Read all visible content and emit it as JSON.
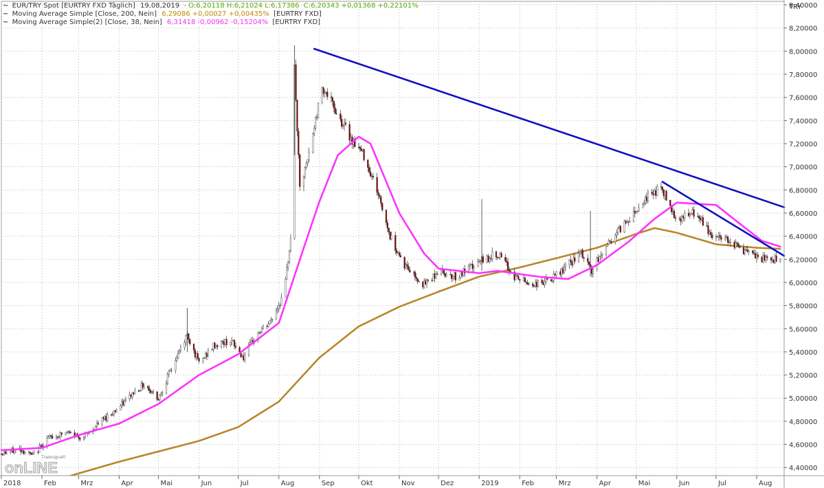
{
  "legend": [
    {
      "name": "EUR/TRY Spot [EURTRY FXD  Täglich]",
      "date": "19,08,2019",
      "ohlc_label": "- O:6,20118 H:6,21024 L:6,17386",
      "value": "C:6,20343 +0,01368 +0,22101%",
      "source": ""
    },
    {
      "name": "Moving Average Simple [Close, 200, Nein]",
      "date": "",
      "ohlc_label": "",
      "value": "6,29086 +0,00027 +0,00435%",
      "source": "[EURTRY FXD]"
    },
    {
      "name": "Moving Average Simple(2) [Close, 38, Nein]",
      "date": "",
      "ohlc_label": "",
      "value": "6,31418 -0,00962 -0,15204%",
      "source": "[EURTRY FXD]"
    }
  ],
  "colors": {
    "background": "#ffffff",
    "grid": "#b8b8b8",
    "candle": "#8a0000",
    "candle_up": "#ffffff",
    "sma200": "#b8862a",
    "sma38": "#ff33ff",
    "trendline": "#1010c0",
    "legend_text": "#333333",
    "legend_value_main": "#55aa00",
    "legend_value_sma200": "#c08a00",
    "legend_value_sma38": "#ee33ee"
  },
  "logo": {
    "sub": "Tradesignal®",
    "main": "onLINE"
  },
  "chart_data": {
    "type": "candlestick",
    "currency_label": "TRY",
    "y_range": [
      4.33,
      8.43
    ],
    "date_range": [
      "2018-01-01",
      "2019-08-22"
    ],
    "y_ticks": [
      {
        "value": 4.4,
        "label": "4,40000"
      },
      {
        "value": 4.6,
        "label": "4,60000"
      },
      {
        "value": 4.8,
        "label": "4,80000"
      },
      {
        "value": 5.0,
        "label": "5,00000"
      },
      {
        "value": 5.2,
        "label": "5,20000"
      },
      {
        "value": 5.4,
        "label": "5,40000"
      },
      {
        "value": 5.6,
        "label": "5,60000"
      },
      {
        "value": 5.8,
        "label": "5,80000"
      },
      {
        "value": 6.0,
        "label": "6,00000"
      },
      {
        "value": 6.2,
        "label": "6,20000"
      },
      {
        "value": 6.4,
        "label": "6,40000"
      },
      {
        "value": 6.6,
        "label": "6,60000"
      },
      {
        "value": 6.8,
        "label": "6,80000"
      },
      {
        "value": 7.0,
        "label": "7,00000"
      },
      {
        "value": 7.2,
        "label": "7,20000"
      },
      {
        "value": 7.4,
        "label": "7,40000"
      },
      {
        "value": 7.6,
        "label": "7,60000"
      },
      {
        "value": 7.8,
        "label": "7,80000"
      },
      {
        "value": 8.0,
        "label": "8,00000"
      },
      {
        "value": 8.2,
        "label": "8,20000"
      },
      {
        "value": 8.4,
        "label": "8,40000"
      }
    ],
    "x_ticks": [
      {
        "date": "2018-01-01",
        "label": "2018"
      },
      {
        "date": "2018-02-01",
        "label": "Feb"
      },
      {
        "date": "2018-03-01",
        "label": "Mrz"
      },
      {
        "date": "2018-04-01",
        "label": "Apr"
      },
      {
        "date": "2018-05-01",
        "label": "Mai"
      },
      {
        "date": "2018-06-01",
        "label": "Jun"
      },
      {
        "date": "2018-07-01",
        "label": "Jul"
      },
      {
        "date": "2018-08-01",
        "label": "Aug"
      },
      {
        "date": "2018-09-01",
        "label": "Sep"
      },
      {
        "date": "2018-10-01",
        "label": "Okt"
      },
      {
        "date": "2018-11-01",
        "label": "Nov"
      },
      {
        "date": "2018-12-01",
        "label": "Dez"
      },
      {
        "date": "2019-01-01",
        "label": "2019"
      },
      {
        "date": "2019-02-01",
        "label": "Feb"
      },
      {
        "date": "2019-03-01",
        "label": "Mrz"
      },
      {
        "date": "2019-04-01",
        "label": "Apr"
      },
      {
        "date": "2019-05-01",
        "label": "Mai"
      },
      {
        "date": "2019-06-01",
        "label": "Jun"
      },
      {
        "date": "2019-07-01",
        "label": "Jul"
      },
      {
        "date": "2019-08-01",
        "label": "Aug"
      }
    ],
    "price_path": [
      {
        "date": "2018-01-01",
        "value": 4.52
      },
      {
        "date": "2018-01-15",
        "value": 4.56
      },
      {
        "date": "2018-01-25",
        "value": 4.5
      },
      {
        "date": "2018-02-05",
        "value": 4.65
      },
      {
        "date": "2018-02-20",
        "value": 4.7
      },
      {
        "date": "2018-03-05",
        "value": 4.66
      },
      {
        "date": "2018-03-20",
        "value": 4.82
      },
      {
        "date": "2018-04-01",
        "value": 4.92
      },
      {
        "date": "2018-04-12",
        "value": 5.05
      },
      {
        "date": "2018-04-20",
        "value": 5.12
      },
      {
        "date": "2018-05-01",
        "value": 5.0
      },
      {
        "date": "2018-05-12",
        "value": 5.28
      },
      {
        "date": "2018-05-23",
        "value": 5.55
      },
      {
        "date": "2018-06-01",
        "value": 5.3
      },
      {
        "date": "2018-06-12",
        "value": 5.45
      },
      {
        "date": "2018-06-25",
        "value": 5.5
      },
      {
        "date": "2018-07-05",
        "value": 5.35
      },
      {
        "date": "2018-07-15",
        "value": 5.55
      },
      {
        "date": "2018-07-25",
        "value": 5.65
      },
      {
        "date": "2018-08-05",
        "value": 5.9
      },
      {
        "date": "2018-08-10",
        "value": 6.4
      },
      {
        "date": "2018-08-13",
        "value": 7.85
      },
      {
        "date": "2018-08-17",
        "value": 6.8
      },
      {
        "date": "2018-08-23",
        "value": 7.05
      },
      {
        "date": "2018-09-03",
        "value": 7.7
      },
      {
        "date": "2018-09-15",
        "value": 7.45
      },
      {
        "date": "2018-09-25",
        "value": 7.25
      },
      {
        "date": "2018-10-05",
        "value": 7.1
      },
      {
        "date": "2018-10-15",
        "value": 6.8
      },
      {
        "date": "2018-10-25",
        "value": 6.4
      },
      {
        "date": "2018-11-05",
        "value": 6.15
      },
      {
        "date": "2018-11-20",
        "value": 5.98
      },
      {
        "date": "2018-12-01",
        "value": 6.1
      },
      {
        "date": "2018-12-15",
        "value": 6.05
      },
      {
        "date": "2019-01-05",
        "value": 6.2
      },
      {
        "date": "2019-01-15",
        "value": 6.25
      },
      {
        "date": "2019-01-28",
        "value": 6.05
      },
      {
        "date": "2019-02-10",
        "value": 5.98
      },
      {
        "date": "2019-02-25",
        "value": 6.02
      },
      {
        "date": "2019-03-10",
        "value": 6.15
      },
      {
        "date": "2019-03-20",
        "value": 6.25
      },
      {
        "date": "2019-03-28",
        "value": 6.1
      },
      {
        "date": "2019-04-10",
        "value": 6.35
      },
      {
        "date": "2019-04-25",
        "value": 6.55
      },
      {
        "date": "2019-05-10",
        "value": 6.75
      },
      {
        "date": "2019-05-20",
        "value": 6.82
      },
      {
        "date": "2019-06-01",
        "value": 6.55
      },
      {
        "date": "2019-06-15",
        "value": 6.6
      },
      {
        "date": "2019-06-28",
        "value": 6.4
      },
      {
        "date": "2019-07-10",
        "value": 6.38
      },
      {
        "date": "2019-07-25",
        "value": 6.25
      },
      {
        "date": "2019-08-05",
        "value": 6.2
      },
      {
        "date": "2019-08-19",
        "value": 6.2
      }
    ],
    "spikes": [
      {
        "date": "2018-08-13",
        "high": 8.05,
        "low": 7.1
      },
      {
        "date": "2018-05-23",
        "high": 5.78,
        "low": 5.4
      },
      {
        "date": "2019-01-03",
        "high": 6.72,
        "low": 6.1
      },
      {
        "date": "2019-03-27",
        "high": 6.62,
        "low": 6.05
      }
    ],
    "series": [
      {
        "name": "Moving Average Simple [Close, 200, Nein]",
        "color": "#b8862a",
        "points": [
          {
            "date": "2018-02-20",
            "value": 4.32
          },
          {
            "date": "2018-04-01",
            "value": 4.45
          },
          {
            "date": "2018-06-01",
            "value": 4.63
          },
          {
            "date": "2018-07-01",
            "value": 4.75
          },
          {
            "date": "2018-08-01",
            "value": 4.97
          },
          {
            "date": "2018-09-01",
            "value": 5.35
          },
          {
            "date": "2018-10-01",
            "value": 5.62
          },
          {
            "date": "2018-11-01",
            "value": 5.79
          },
          {
            "date": "2018-12-01",
            "value": 5.92
          },
          {
            "date": "2019-01-01",
            "value": 6.05
          },
          {
            "date": "2019-02-01",
            "value": 6.13
          },
          {
            "date": "2019-03-01",
            "value": 6.21
          },
          {
            "date": "2019-04-01",
            "value": 6.3
          },
          {
            "date": "2019-05-01",
            "value": 6.42
          },
          {
            "date": "2019-05-15",
            "value": 6.47
          },
          {
            "date": "2019-06-01",
            "value": 6.43
          },
          {
            "date": "2019-07-01",
            "value": 6.33
          },
          {
            "date": "2019-08-01",
            "value": 6.3
          },
          {
            "date": "2019-08-19",
            "value": 6.29
          }
        ]
      },
      {
        "name": "Moving Average Simple(2) [Close, 38, Nein]",
        "color": "#ff33ff",
        "points": [
          {
            "date": "2018-01-01",
            "value": 4.55
          },
          {
            "date": "2018-02-01",
            "value": 4.57
          },
          {
            "date": "2018-03-01",
            "value": 4.68
          },
          {
            "date": "2018-04-01",
            "value": 4.78
          },
          {
            "date": "2018-05-01",
            "value": 4.95
          },
          {
            "date": "2018-06-01",
            "value": 5.2
          },
          {
            "date": "2018-07-01",
            "value": 5.38
          },
          {
            "date": "2018-08-01",
            "value": 5.65
          },
          {
            "date": "2018-08-20",
            "value": 6.3
          },
          {
            "date": "2018-09-01",
            "value": 6.7
          },
          {
            "date": "2018-09-15",
            "value": 7.1
          },
          {
            "date": "2018-10-01",
            "value": 7.26
          },
          {
            "date": "2018-10-10",
            "value": 7.2
          },
          {
            "date": "2018-11-01",
            "value": 6.6
          },
          {
            "date": "2018-11-20",
            "value": 6.25
          },
          {
            "date": "2018-12-01",
            "value": 6.12
          },
          {
            "date": "2019-01-01",
            "value": 6.08
          },
          {
            "date": "2019-01-15",
            "value": 6.1
          },
          {
            "date": "2019-02-15",
            "value": 6.05
          },
          {
            "date": "2019-03-10",
            "value": 6.03
          },
          {
            "date": "2019-04-01",
            "value": 6.15
          },
          {
            "date": "2019-04-25",
            "value": 6.35
          },
          {
            "date": "2019-05-15",
            "value": 6.55
          },
          {
            "date": "2019-06-01",
            "value": 6.69
          },
          {
            "date": "2019-07-01",
            "value": 6.67
          },
          {
            "date": "2019-07-20",
            "value": 6.5
          },
          {
            "date": "2019-08-05",
            "value": 6.36
          },
          {
            "date": "2019-08-19",
            "value": 6.31
          }
        ]
      }
    ],
    "trendlines": [
      {
        "from": {
          "date": "2018-08-28",
          "value": 8.02
        },
        "to": {
          "date": "2019-08-22",
          "value": 6.65
        }
      },
      {
        "from": {
          "date": "2019-05-21",
          "value": 6.87
        },
        "to": {
          "date": "2019-08-22",
          "value": 6.23
        }
      }
    ]
  }
}
